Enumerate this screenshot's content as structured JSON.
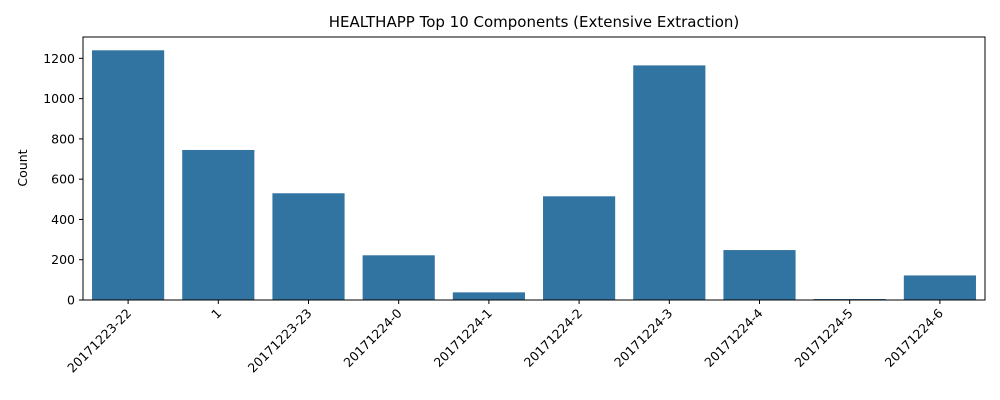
{
  "chart_data": {
    "type": "bar",
    "title": "HEALTHAPP Top 10 Components (Extensive Extraction)",
    "xlabel": "",
    "ylabel": "Count",
    "categories": [
      "20171223-22",
      "1",
      "20171223-23",
      "20171224-0",
      "20171224-1",
      "20171224-2",
      "20171224-3",
      "20171224-4",
      "20171224-5",
      "20171224-6"
    ],
    "values": [
      1240,
      745,
      530,
      222,
      38,
      515,
      1165,
      248,
      5,
      122
    ],
    "ylim": [
      0,
      1306
    ],
    "yticks": [
      0,
      200,
      400,
      600,
      800,
      1000,
      1200
    ],
    "bar_color": "#3274a1",
    "grid": false,
    "legend": "none"
  }
}
